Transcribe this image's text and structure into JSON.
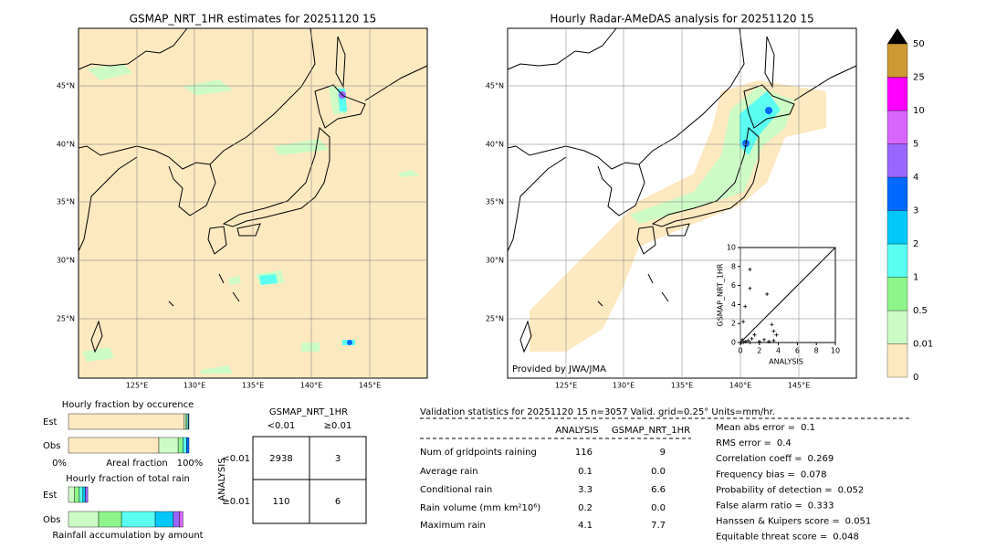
{
  "left_map": {
    "title": "GSMAP_NRT_1HR estimates for 20251120 15",
    "lat_labels": [
      "45°N",
      "40°N",
      "35°N",
      "30°N",
      "25°N"
    ],
    "lon_labels": [
      "125°E",
      "130°E",
      "135°E",
      "140°E",
      "145°E"
    ]
  },
  "right_map": {
    "title": "Hourly Radar-AMeDAS analysis for 20251120 15",
    "lat_labels": [
      "45°N",
      "40°N",
      "35°N",
      "30°N",
      "25°N"
    ],
    "lon_labels": [
      "125°E",
      "130°E",
      "135°E",
      "140°E",
      "145°E"
    ],
    "credit": "Provided by JWA/JMA"
  },
  "colorbar": {
    "labels": [
      0,
      0.01,
      0.5,
      1,
      2,
      3,
      4,
      5,
      10,
      25,
      50
    ],
    "colors": [
      "#fde9c0",
      "#cdfbc6",
      "#8ef58a",
      "#5afff2",
      "#00c8f8",
      "#0068ff",
      "#9a66ff",
      "#d965ff",
      "#ff00ff",
      "#cc9933"
    ],
    "over_color": "#000000"
  },
  "chart_data": {
    "type": "scatter",
    "x_label": "ANALYSIS",
    "y_label": "GSMAP_NRT_1HR",
    "x": [
      1.0,
      1.0,
      0.5,
      0.3,
      2.8,
      3.3,
      3.5,
      3.8,
      3.5,
      1.5,
      0.2,
      0.5,
      1.0,
      2.0,
      2.5,
      0.1,
      0.8,
      1.2,
      0.3,
      3.0
    ],
    "y": [
      7.7,
      5.7,
      3.8,
      2.2,
      5.1,
      1.9,
      1.2,
      0.8,
      0.2,
      0.8,
      0.3,
      0.1,
      0.0,
      0.1,
      0.3,
      0.0,
      0.2,
      0.4,
      0.0,
      0.1
    ],
    "xlim": [
      0,
      10
    ],
    "ylim": [
      0,
      10
    ],
    "xticks": [
      0,
      2,
      4,
      6,
      8,
      10
    ],
    "yticks": [
      0,
      2,
      4,
      6,
      8,
      10
    ],
    "color": "#000000"
  },
  "occurrence": {
    "title": "Hourly fraction by occurence",
    "axis_left": "0%",
    "axis_label": "Areal fraction",
    "axis_right": "100%",
    "rows": [
      {
        "label": "Est",
        "segments": [
          0.96,
          0.015,
          0.01,
          0.01,
          0.005
        ]
      },
      {
        "label": "Obs",
        "segments": [
          0.75,
          0.16,
          0.04,
          0.03,
          0.02
        ]
      }
    ],
    "colors": [
      "#fde9c0",
      "#cdfbc6",
      "#8ef58a",
      "#5afff2",
      "#0068ff"
    ]
  },
  "total_rain": {
    "title": "Hourly fraction of total rain",
    "axis_label": "Rainfall accumulation by amount",
    "rows": [
      {
        "label": "Est",
        "segments": [
          0.05,
          0.04,
          0.03,
          0.02,
          0.02
        ]
      },
      {
        "label": "Obs",
        "segments": [
          0.25,
          0.19,
          0.28,
          0.15,
          0.05,
          0.03
        ]
      }
    ],
    "colors": [
      "#cdfbc6",
      "#8ef58a",
      "#5afff2",
      "#00c8f8",
      "#9a66ff",
      "#d965ff"
    ]
  },
  "contingency": {
    "title": "GSMAP_NRT_1HR",
    "col_labels": [
      "<0.01",
      "≥0.01"
    ],
    "row_title": "ANALYSIS",
    "row_labels": [
      "<0.01",
      "≥0.01"
    ],
    "cells": [
      [
        "2938",
        "3"
      ],
      [
        "110",
        "6"
      ]
    ]
  },
  "validation": {
    "title": "Validation statistics for 20251120 15  n=3057 Valid. grid=0.25° Units=mm/hr.",
    "columns": [
      "ANALYSIS",
      "GSMAP_NRT_1HR"
    ],
    "rows": [
      {
        "label": "Num of gridpoints raining",
        "values": [
          "116",
          "9"
        ]
      },
      {
        "label": "Average rain",
        "values": [
          "0.1",
          "0.0"
        ]
      },
      {
        "label": "Conditional rain",
        "values": [
          "3.3",
          "6.6"
        ]
      },
      {
        "label": "Rain volume (mm km²10⁶)",
        "values": [
          "0.2",
          "0.0"
        ]
      },
      {
        "label": "Maximum rain",
        "values": [
          "4.1",
          "7.7"
        ]
      }
    ],
    "scores": [
      {
        "label": "Mean abs error =",
        "value": "0.1"
      },
      {
        "label": "RMS error =",
        "value": "0.4"
      },
      {
        "label": "Correlation coeff =",
        "value": "0.269"
      },
      {
        "label": "Frequency bias =",
        "value": "0.078"
      },
      {
        "label": "Probability of detection =",
        "value": "0.052"
      },
      {
        "label": "False alarm ratio =",
        "value": "0.333"
      },
      {
        "label": "Hanssen & Kuipers score =",
        "value": "0.051"
      },
      {
        "label": "Equitable threat score =",
        "value": "0.048"
      }
    ]
  }
}
